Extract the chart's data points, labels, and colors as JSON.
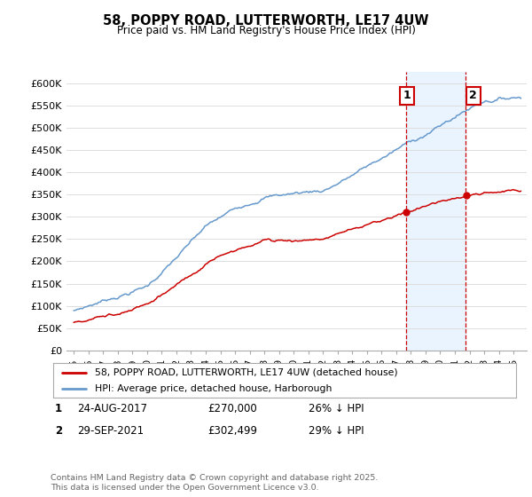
{
  "title1": "58, POPPY ROAD, LUTTERWORTH, LE17 4UW",
  "title2": "Price paid vs. HM Land Registry's House Price Index (HPI)",
  "ylim": [
    0,
    625000
  ],
  "yticks": [
    0,
    50000,
    100000,
    150000,
    200000,
    250000,
    300000,
    350000,
    400000,
    450000,
    500000,
    550000,
    600000
  ],
  "ytick_labels": [
    "£0",
    "£50K",
    "£100K",
    "£150K",
    "£200K",
    "£250K",
    "£300K",
    "£350K",
    "£400K",
    "£450K",
    "£500K",
    "£550K",
    "£600K"
  ],
  "hpi_color": "#6699cc",
  "price_color": "#cc0000",
  "vline1_x": 2017.65,
  "vline2_x": 2021.75,
  "annotation1_label": "1",
  "annotation2_label": "2",
  "price1_y": 270000,
  "price2_y": 302499,
  "legend_label1": "58, POPPY ROAD, LUTTERWORTH, LE17 4UW (detached house)",
  "legend_label2": "HPI: Average price, detached house, Harborough",
  "table_row1": [
    "1",
    "24-AUG-2017",
    "£270,000",
    "26% ↓ HPI"
  ],
  "table_row2": [
    "2",
    "29-SEP-2021",
    "£302,499",
    "29% ↓ HPI"
  ],
  "footer": "Contains HM Land Registry data © Crown copyright and database right 2025.\nThis data is licensed under the Open Government Licence v3.0.",
  "bg_color": "#ffffff",
  "grid_color": "#dddddd",
  "highlight_color": "#ddeeff",
  "xlim_left": 1994.5,
  "xlim_right": 2025.9
}
